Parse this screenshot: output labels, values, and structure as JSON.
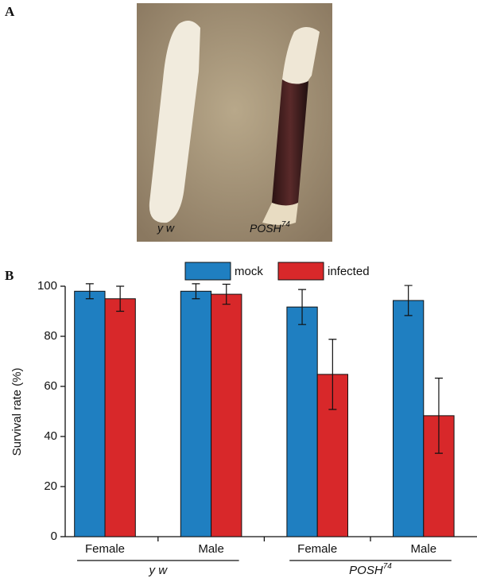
{
  "panel_labels": [
    "A",
    "B"
  ],
  "photo": {
    "labels": [
      {
        "text": "y w"
      },
      {
        "text": "POSH",
        "superscript": "74"
      }
    ]
  },
  "chart_data": {
    "type": "bar",
    "ylabel": "Survival rate (%)",
    "categories": [
      "Female",
      "Male",
      "Female",
      "Male"
    ],
    "groups": [
      {
        "name": "y w"
      },
      {
        "name": "POSH",
        "superscript": "74"
      }
    ],
    "series": [
      {
        "name": "mock",
        "color": "#1f7fc1",
        "values": [
          98,
          98,
          91.7,
          94.3
        ],
        "errors": [
          3,
          3,
          7,
          6
        ]
      },
      {
        "name": "infected",
        "color": "#d8282a",
        "values": [
          95,
          96.8,
          64.8,
          48.3
        ],
        "errors": [
          5,
          4,
          14,
          15
        ]
      }
    ],
    "ylim": [
      0,
      100
    ],
    "yticks": [
      0,
      20,
      40,
      60,
      80,
      100
    ]
  }
}
